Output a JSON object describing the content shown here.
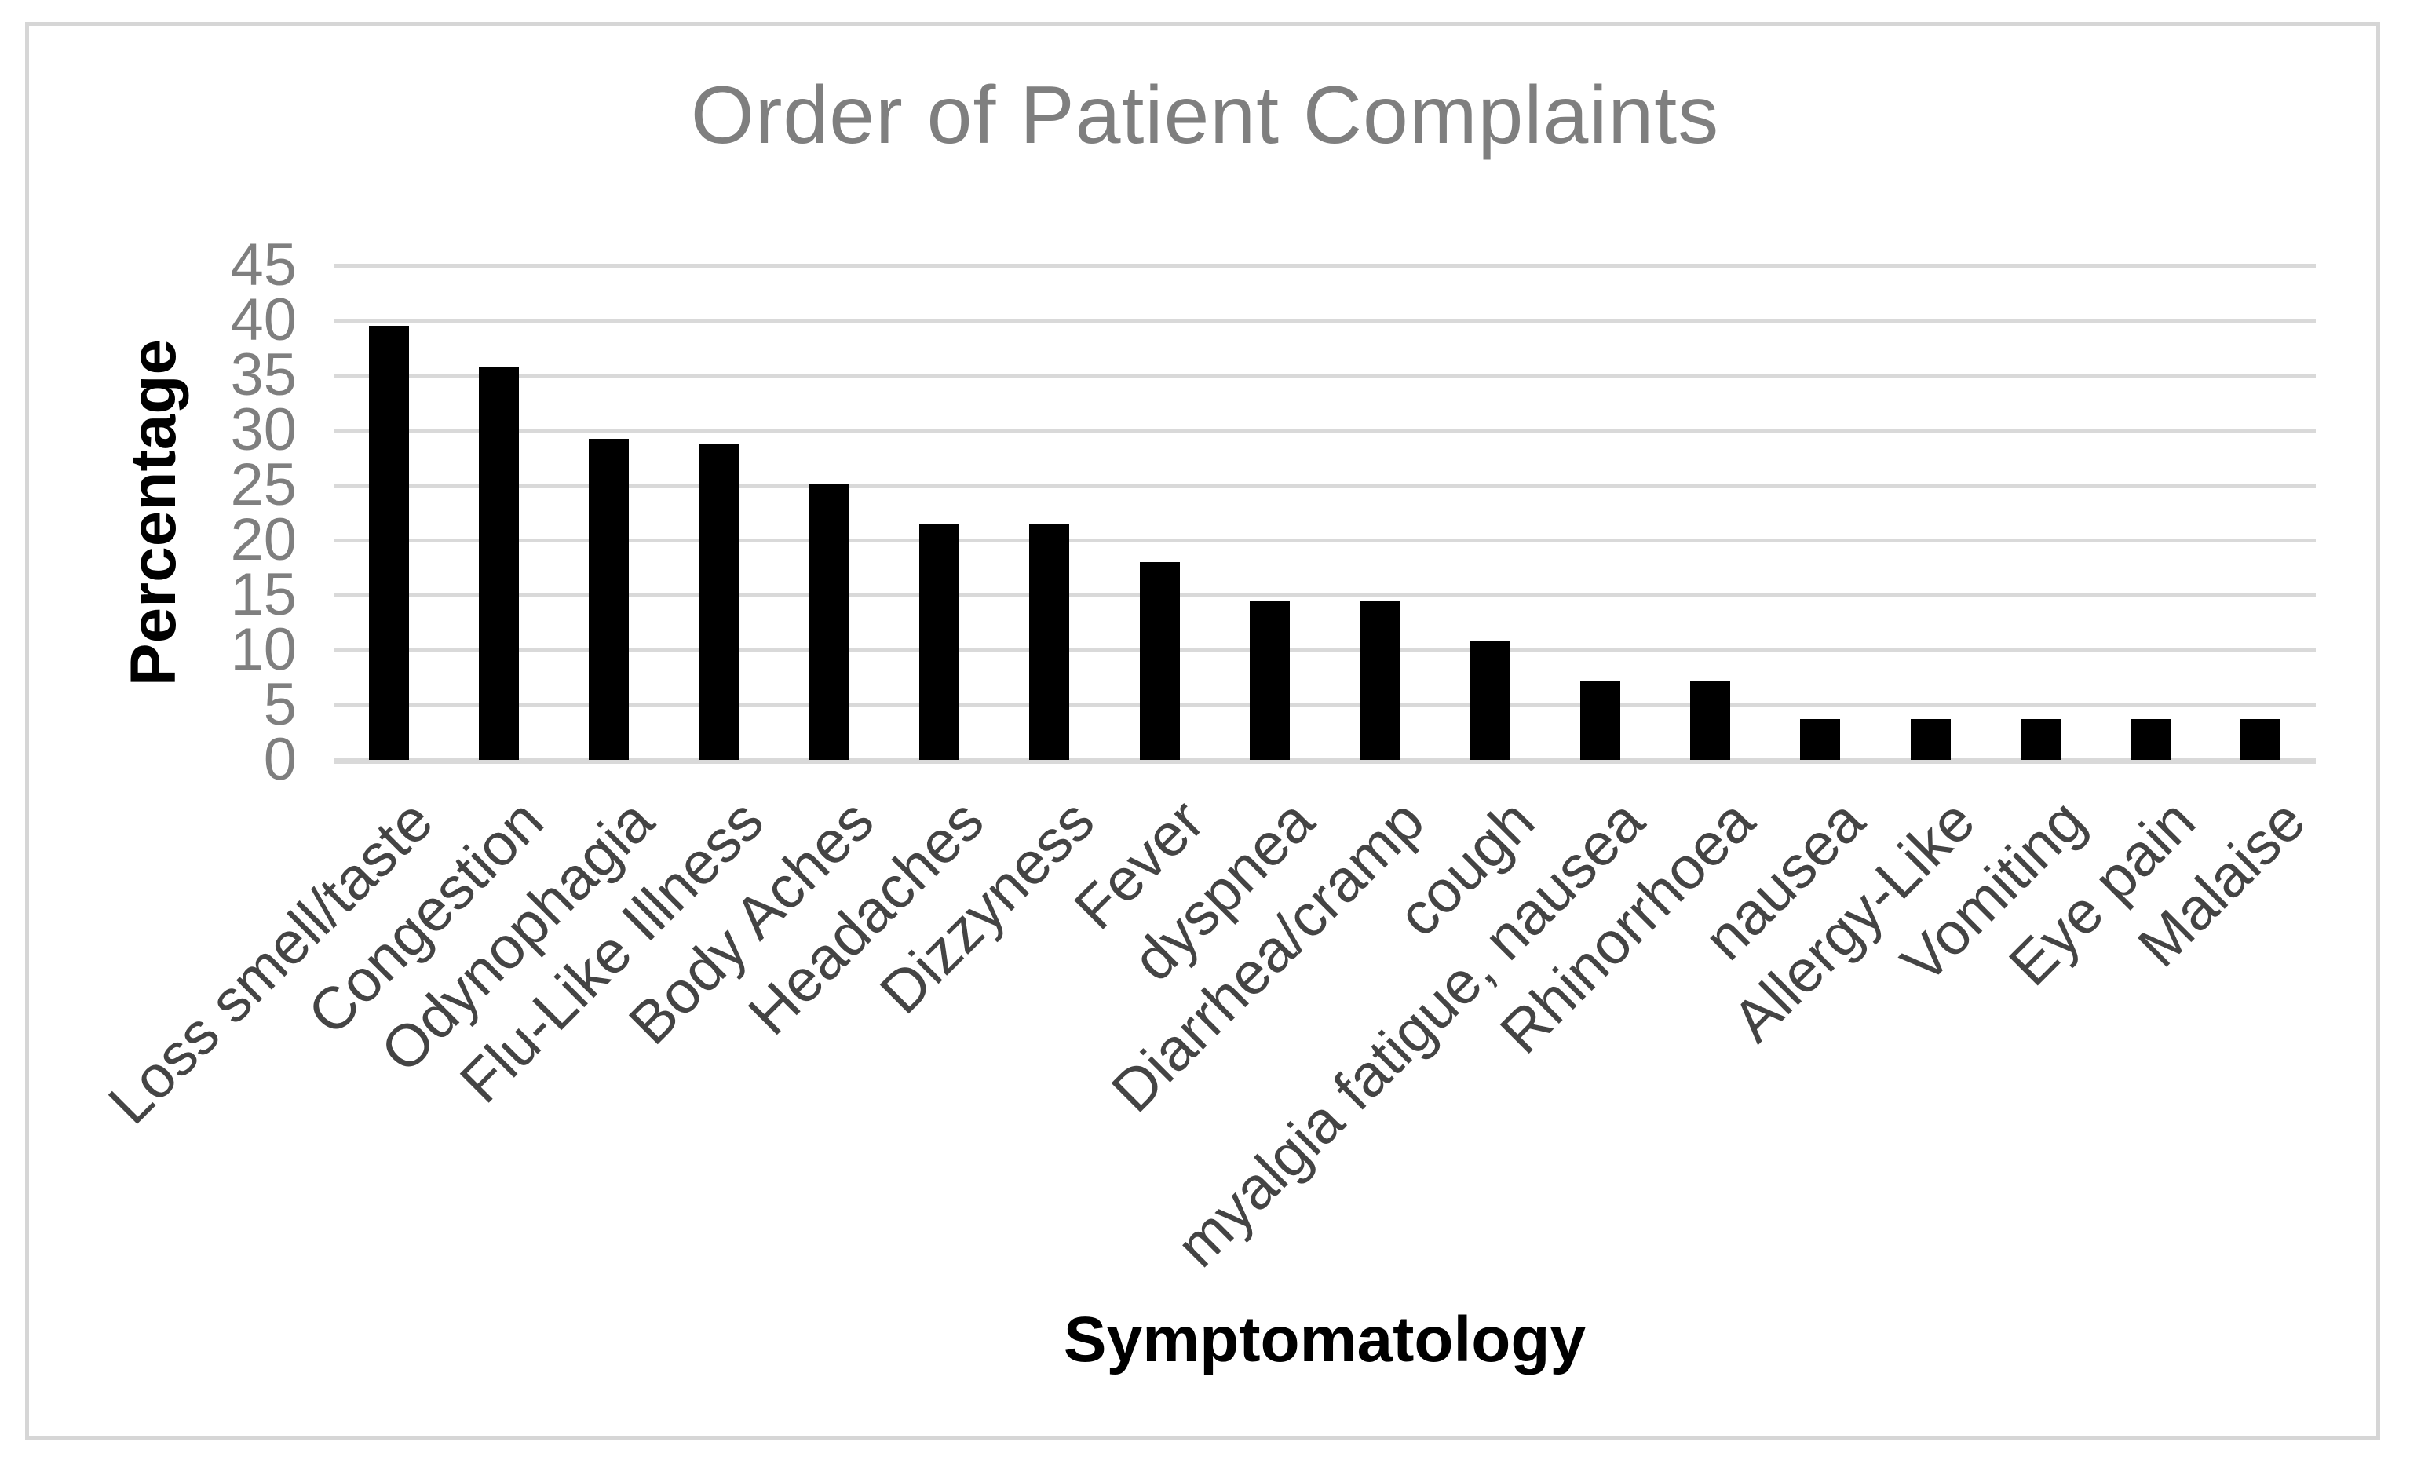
{
  "chart_data": {
    "type": "bar",
    "title": "Order of Patient Complaints",
    "xlabel": "Symptomatology",
    "ylabel": "Percentage",
    "categories": [
      "Loss smell/taste",
      "Congestion",
      "Odynophagia",
      "Flu-Like Illness",
      "Body Aches",
      "Headaches",
      "Dizzyness",
      "Fever",
      "dyspnea",
      "Diarrhea/cramp",
      "cough",
      "myalgia fatigue, nausea",
      "Rhinorrhoea",
      "nausea",
      "Allergy-Like",
      "Vomiting",
      "Eye pain",
      "Malaise"
    ],
    "values": [
      39.5,
      35.8,
      29.2,
      28.7,
      25.1,
      21.5,
      21.5,
      18.0,
      14.4,
      14.4,
      10.8,
      7.2,
      7.2,
      3.7,
      3.7,
      3.7,
      3.7,
      3.7
    ],
    "ylim": [
      0,
      45
    ],
    "ytick_step": 5,
    "yticks": [
      45,
      40,
      35,
      30,
      25,
      20,
      15,
      10,
      5,
      0
    ],
    "grid": "horizontal",
    "legend": "none",
    "colors": {
      "bar": "#000000",
      "title": "#7f7f7f",
      "tick_labels": "#7f7f7f",
      "category_labels": "#444444",
      "axis_titles": "#000000",
      "gridline": "#d9d9d9",
      "frame_border": "#d6d6d6",
      "background": "#ffffff"
    }
  }
}
